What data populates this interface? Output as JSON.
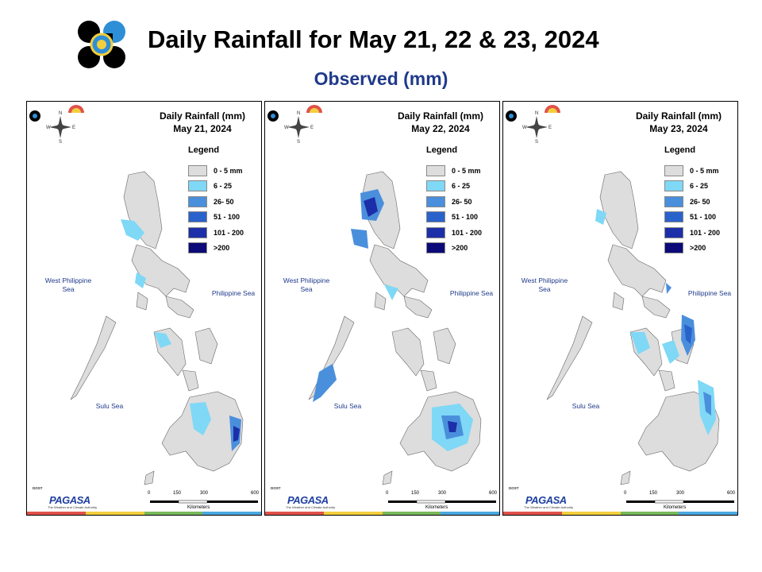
{
  "header": {
    "title": "Daily Rainfall for May 21, 22 & 23, 2024",
    "subtitle": "Observed (mm)"
  },
  "panels": [
    {
      "title": "Daily Rainfall (mm)",
      "date": "May 21, 2024"
    },
    {
      "title": "Daily Rainfall (mm)",
      "date": "May 22, 2024"
    },
    {
      "title": "Daily Rainfall (mm)",
      "date": "May 23, 2024"
    }
  ],
  "legend": {
    "title": "Legend",
    "items": [
      {
        "label": "0 - 5 mm",
        "color": "#dddddd"
      },
      {
        "label": "6 - 25",
        "color": "#7fd8f6"
      },
      {
        "label": "26- 50",
        "color": "#4a8fdc"
      },
      {
        "label": "51 - 100",
        "color": "#2a62cc"
      },
      {
        "label": "101 - 200",
        "color": "#1c2fa8"
      },
      {
        "label": ">200",
        "color": "#0b0a78"
      }
    ]
  },
  "seas": {
    "west": "West Philippine Sea",
    "east": "Philippine Sea",
    "sulu": "Sulu Sea"
  },
  "compass": {
    "n": "N",
    "s": "S",
    "e": "E",
    "w": "W"
  },
  "scale": {
    "ticks": [
      "0",
      "150",
      "300",
      "600"
    ],
    "unit": "Kilometers"
  },
  "footer": {
    "agency": "PAGASA",
    "prefix": "DOST",
    "sub": "DIYONG",
    "tagline": "The Weather and Climate Authority"
  },
  "colors": {
    "land": "#dddddd",
    "stripe": [
      "#e0524b",
      "#f2cf3d",
      "#78b95a",
      "#4aa8e0"
    ]
  }
}
